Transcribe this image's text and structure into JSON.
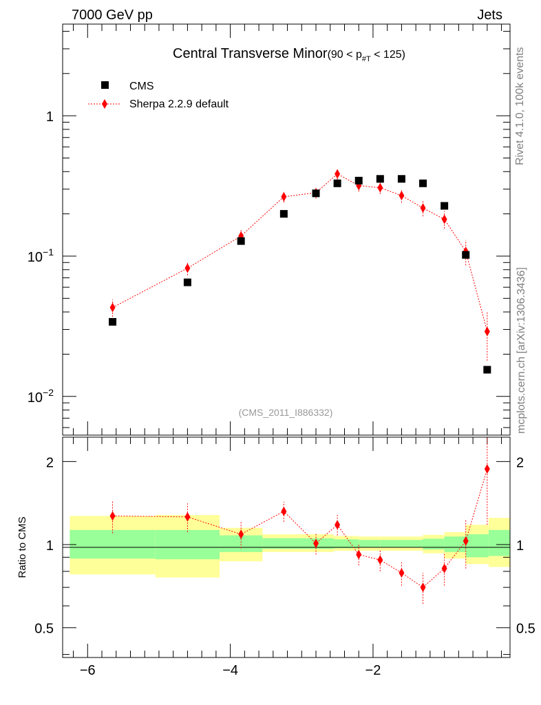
{
  "header": {
    "left_label": "7000 GeV pp",
    "right_label": "Jets"
  },
  "side_labels": {
    "rivet": "Rivet 4.1.0,  100k events",
    "source": "mcplots.cern.ch [arXiv:1306.3436]"
  },
  "colors": {
    "mc": "#ff0000",
    "band_inner": "#99ff99",
    "band_outer": "#ffff99",
    "data": "#000000"
  },
  "chart_data": [
    {
      "type": "scatter",
      "panel": "main",
      "title_main": "Central Transverse Minor",
      "title_cut": "(90 < p",
      "title_sub": "#T",
      "title_tail": " < 125)",
      "watermark": "(CMS_2011_I886332)",
      "yscale": "log",
      "xlim": [
        -6.35,
        -0.08
      ],
      "ylim": [
        0.0053,
        4.5
      ],
      "x_ticks": [
        -6,
        -4,
        -2
      ],
      "x_tick_labels": [
        "−6",
        "−4",
        "−2"
      ],
      "y_tick_labels": [
        {
          "value": 1,
          "base": "1",
          "exp": ""
        },
        {
          "value": 0.1,
          "base": "10",
          "exp": "−1"
        },
        {
          "value": 0.01,
          "base": "10",
          "exp": "−2"
        }
      ],
      "legend": [
        {
          "label": "CMS",
          "marker": "square"
        },
        {
          "label": "Sherpa 2.2.9 default",
          "marker": "diamond"
        }
      ],
      "series": [
        {
          "name": "CMS",
          "x": [
            -5.65,
            -4.6,
            -3.85,
            -3.25,
            -2.8,
            -2.5,
            -2.2,
            -1.9,
            -1.6,
            -1.3,
            -1.0,
            -0.7,
            -0.4
          ],
          "y": [
            0.034,
            0.065,
            0.128,
            0.2,
            0.28,
            0.33,
            0.345,
            0.355,
            0.355,
            0.33,
            0.228,
            0.102,
            0.0155
          ]
        },
        {
          "name": "Sherpa 2.2.9 default",
          "x": [
            -5.65,
            -4.6,
            -3.85,
            -3.25,
            -2.8,
            -2.5,
            -2.2,
            -1.9,
            -1.6,
            -1.3,
            -1.0,
            -0.7,
            -0.4
          ],
          "y": [
            0.043,
            0.082,
            0.139,
            0.265,
            0.283,
            0.385,
            0.318,
            0.307,
            0.27,
            0.22,
            0.183,
            0.108,
            0.029
          ],
          "err_low": [
            0.006,
            0.009,
            0.014,
            0.024,
            0.026,
            0.034,
            0.03,
            0.03,
            0.03,
            0.028,
            0.026,
            0.022,
            0.011
          ],
          "err_high": [
            0.006,
            0.009,
            0.014,
            0.024,
            0.026,
            0.034,
            0.03,
            0.03,
            0.03,
            0.028,
            0.026,
            0.022,
            0.011
          ]
        }
      ]
    },
    {
      "type": "scatter",
      "panel": "ratio",
      "ylabel": "Ratio to CMS",
      "yscale": "log",
      "xlim": [
        -6.35,
        -0.08
      ],
      "ylim": [
        0.39,
        2.45
      ],
      "reference_line": 1,
      "y_tick_labels": [
        {
          "value": 2,
          "label": "2"
        },
        {
          "value": 1,
          "label": "1"
        },
        {
          "value": 0.5,
          "label": "0.5"
        }
      ],
      "bands": {
        "edges": [
          -6.25,
          -5.05,
          -4.15,
          -3.55,
          -2.55,
          -2.2,
          -1.9,
          -1.3,
          -1.0,
          -0.7,
          -0.38,
          -0.08
        ],
        "inner_low": [
          0.89,
          0.885,
          0.94,
          0.965,
          0.97,
          0.975,
          0.975,
          0.96,
          0.94,
          0.9,
          0.91
        ],
        "inner_high": [
          1.13,
          1.13,
          1.08,
          1.055,
          1.045,
          1.04,
          1.04,
          1.05,
          1.07,
          1.09,
          1.13
        ],
        "outer_low": [
          0.78,
          0.76,
          0.87,
          0.94,
          0.95,
          0.95,
          0.95,
          0.93,
          0.89,
          0.85,
          0.83
        ],
        "outer_high": [
          1.27,
          1.28,
          1.15,
          1.09,
          1.075,
          1.07,
          1.07,
          1.085,
          1.11,
          1.18,
          1.25
        ]
      },
      "series": [
        {
          "name": "Sherpa 2.2.9 default / CMS",
          "x": [
            -5.65,
            -4.6,
            -3.85,
            -3.25,
            -2.8,
            -2.5,
            -2.2,
            -1.9,
            -1.6,
            -1.3,
            -1.0,
            -0.7,
            -0.4
          ],
          "y": [
            1.27,
            1.26,
            1.09,
            1.32,
            1.01,
            1.18,
            0.92,
            0.88,
            0.79,
            0.7,
            0.82,
            1.03,
            1.88
          ],
          "err_low": [
            0.17,
            0.15,
            0.12,
            0.11,
            0.09,
            0.1,
            0.08,
            0.08,
            0.08,
            0.09,
            0.11,
            0.21,
            0.7
          ],
          "err_high": [
            0.17,
            0.15,
            0.12,
            0.11,
            0.09,
            0.1,
            0.08,
            0.08,
            0.08,
            0.09,
            0.11,
            0.21,
            0.7
          ]
        }
      ]
    }
  ]
}
